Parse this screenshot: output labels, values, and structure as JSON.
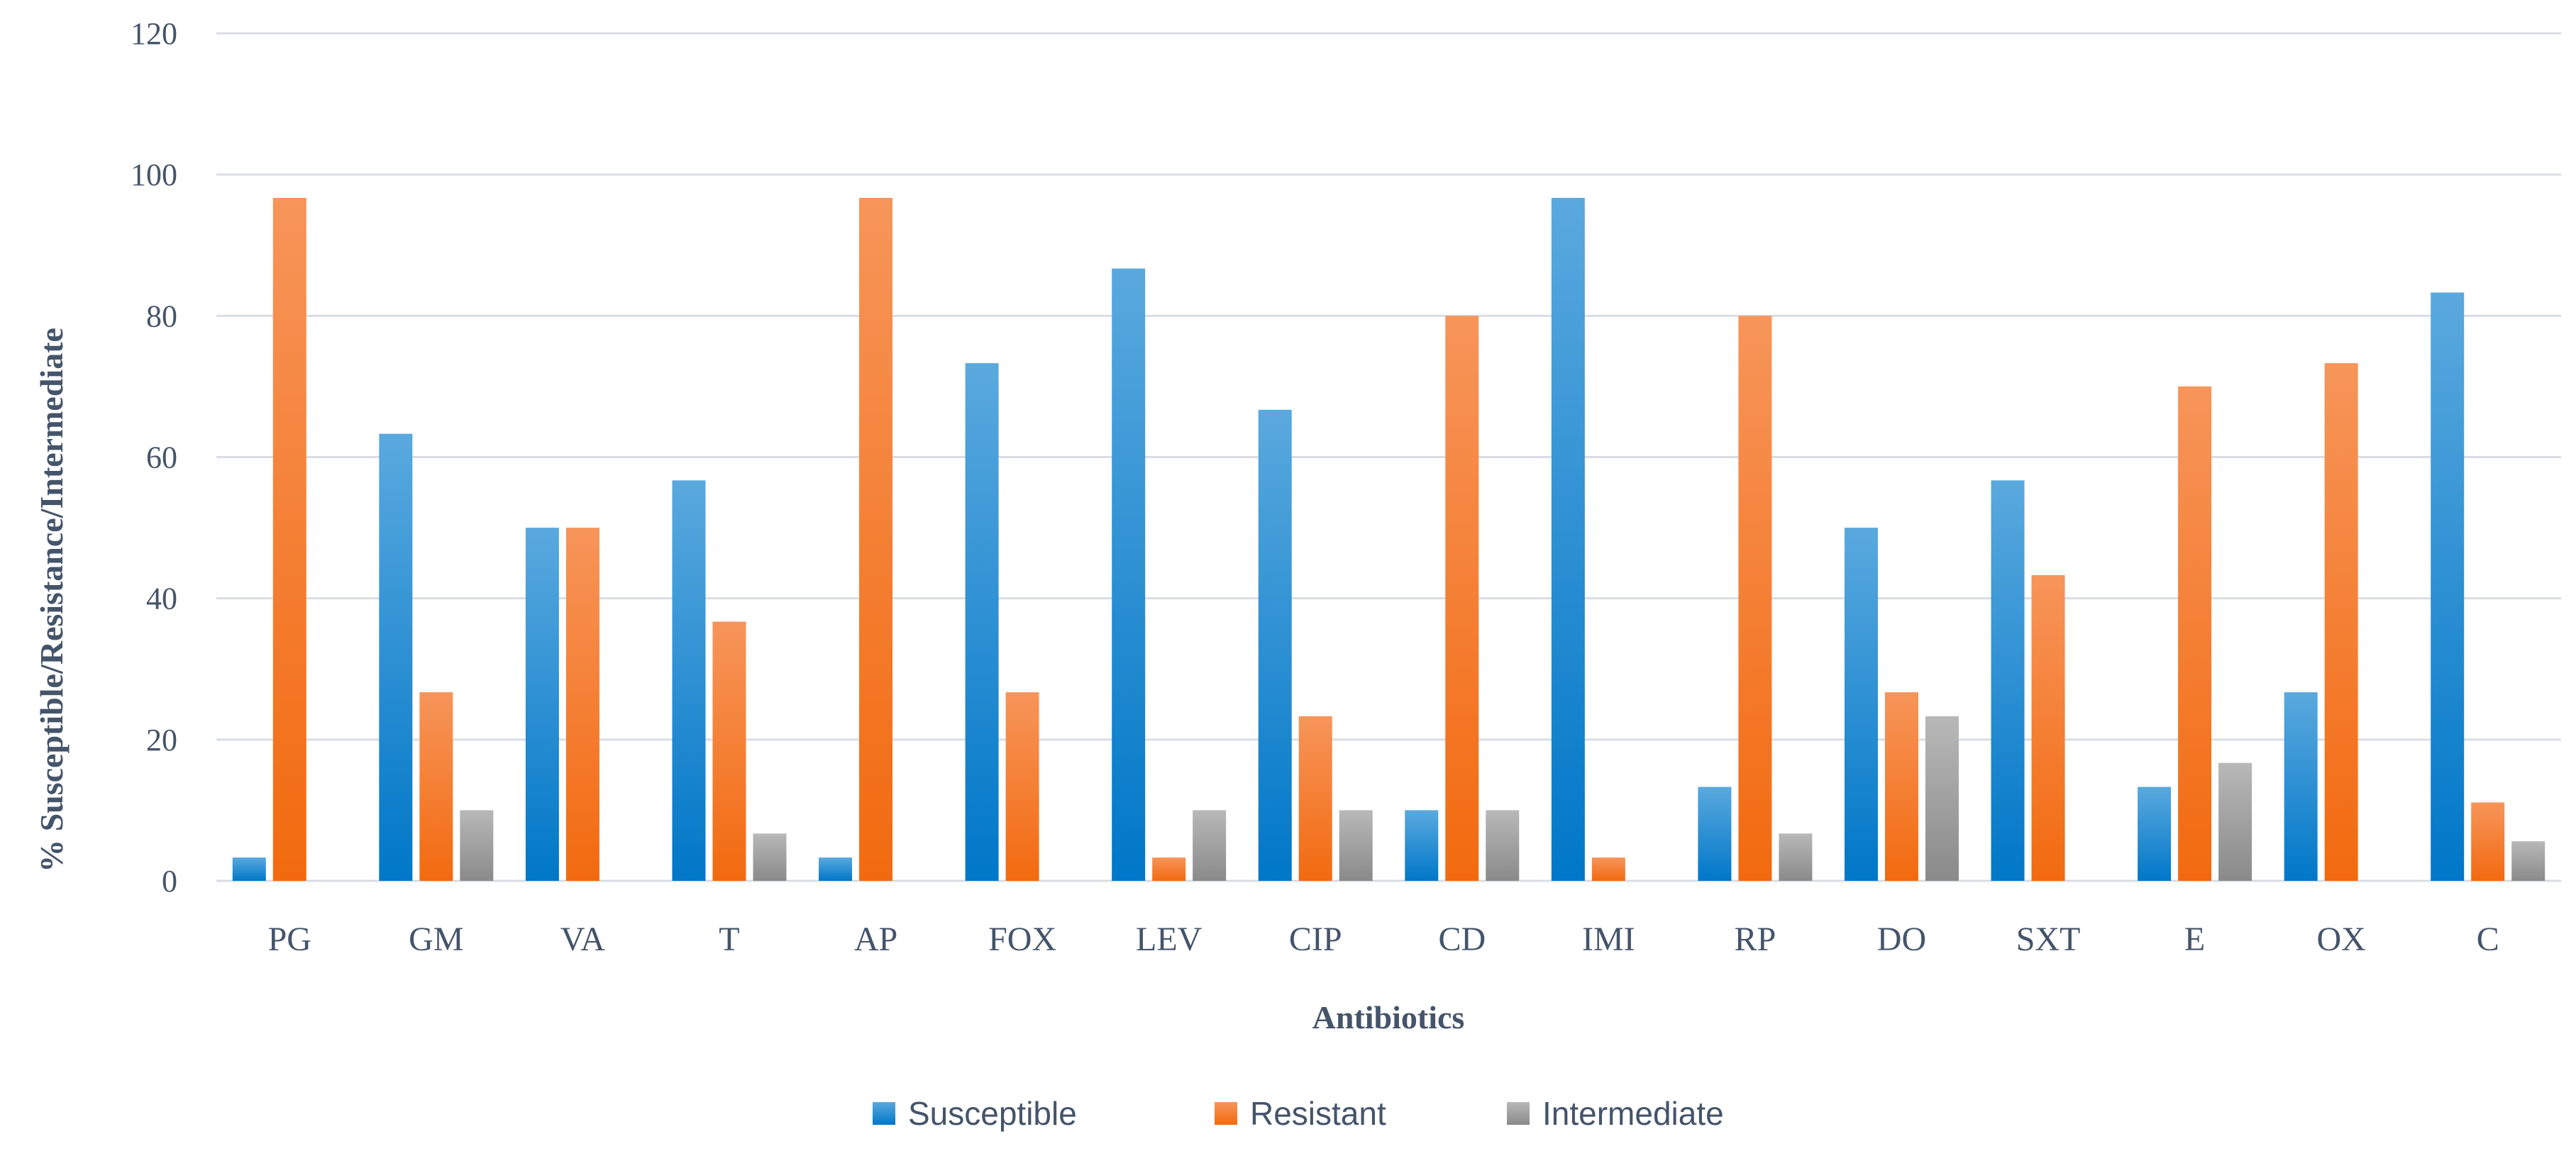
{
  "chart_data": {
    "type": "bar",
    "title": "",
    "xlabel": "Antibiotics",
    "ylabel": "% Susceptible/Resistance/Intermediate",
    "ylim": [
      0,
      120
    ],
    "yticks": [
      0,
      20,
      40,
      60,
      80,
      100,
      120
    ],
    "grid": true,
    "legend_position": "bottom",
    "categories": [
      "PG",
      "GM",
      "VA",
      "T",
      "AP",
      "FOX",
      "LEV",
      "CIP",
      "CD",
      "IMI",
      "RP",
      "DO",
      "SXT",
      "E",
      "OX",
      "C"
    ],
    "series": [
      {
        "name": "Susceptible",
        "color": "#1f8fd6",
        "values": [
          3.3,
          63.3,
          50,
          56.7,
          3.3,
          73.3,
          86.7,
          66.7,
          10,
          96.7,
          13.3,
          50,
          56.7,
          13.3,
          26.7,
          83.3
        ]
      },
      {
        "name": "Resistant",
        "color": "#f57c2a",
        "values": [
          96.7,
          26.7,
          50,
          36.7,
          96.7,
          26.7,
          3.3,
          23.3,
          80,
          3.3,
          80,
          26.7,
          43.3,
          70,
          73.3,
          11.1
        ]
      },
      {
        "name": "Intermediate",
        "color": "#9b9b9b",
        "values": [
          0,
          10,
          0,
          6.7,
          0,
          0,
          10,
          10,
          10,
          0,
          6.7,
          23.3,
          0,
          16.7,
          0,
          5.6
        ]
      }
    ]
  }
}
